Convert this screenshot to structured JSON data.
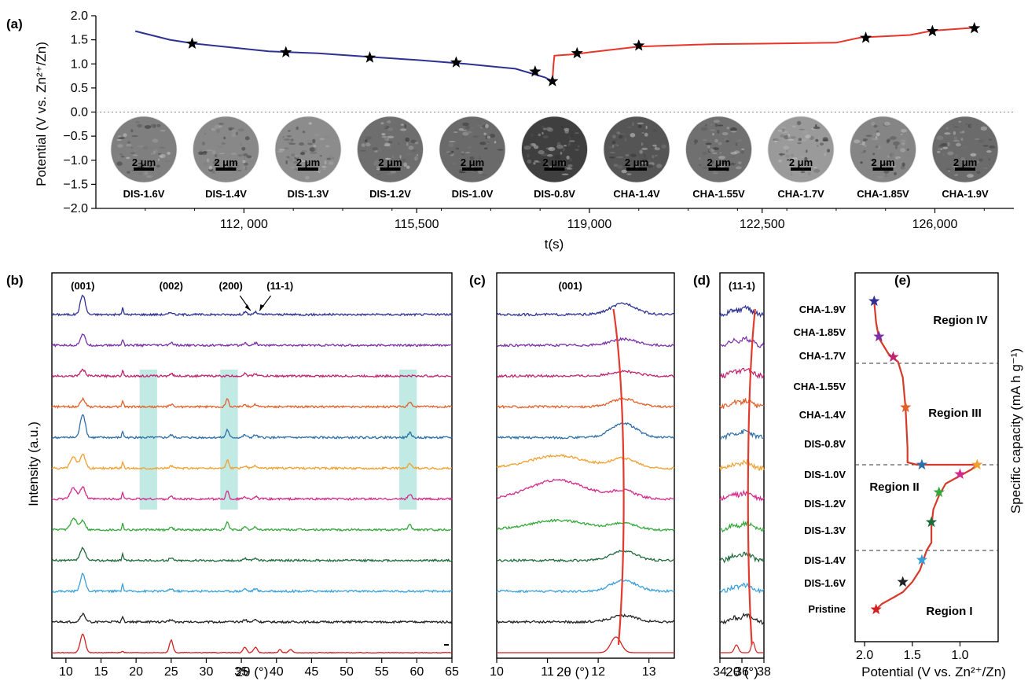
{
  "chart_data": [
    {
      "panel": "(a)",
      "type": "line",
      "xlabel": "t(s)",
      "ylabel": "Potential (V vs. Zn²⁺/Zn)",
      "xlim": [
        109000,
        127600
      ],
      "ylim": [
        -2.0,
        2.0
      ],
      "xticks": [
        112000,
        115500,
        119000,
        122500,
        126000
      ],
      "xtick_labels": [
        "112, 000",
        "115,500",
        "119,000",
        "122,500",
        "126,000"
      ],
      "yticks": [
        2.0,
        1.5,
        1.0,
        0.5,
        0.0,
        -0.5,
        -1.0,
        -1.5,
        -2.0
      ],
      "ytick_labels": [
        "2.0",
        "1.5",
        "1.0",
        "0.5",
        "0.0",
        "−0.5",
        "−1.0",
        "−1.5",
        "−2.0"
      ],
      "zero_line": true,
      "series": [
        {
          "color": "#2e3192",
          "x": [
            109800,
            110500,
            111000,
            112500,
            113500,
            114500,
            115500,
            116500,
            117500,
            118100,
            118250
          ],
          "y": [
            1.68,
            1.5,
            1.42,
            1.26,
            1.22,
            1.15,
            1.08,
            1.0,
            0.9,
            0.72,
            0.64
          ]
        },
        {
          "color": "#e8352a",
          "x": [
            118250,
            118270,
            118290,
            118400,
            118700,
            119000,
            120000,
            121500,
            122500,
            124000,
            124500,
            125500,
            125950,
            126800
          ],
          "y": [
            0.64,
            0.95,
            1.17,
            1.18,
            1.2,
            1.24,
            1.36,
            1.41,
            1.42,
            1.44,
            1.55,
            1.6,
            1.69,
            1.75
          ]
        }
      ],
      "star_points": {
        "x": [
          110950,
          112850,
          114550,
          116300,
          117900,
          118250,
          118750,
          120000,
          124600,
          125950,
          126800
        ],
        "y": [
          1.42,
          1.24,
          1.13,
          1.03,
          0.84,
          0.64,
          1.22,
          1.38,
          1.54,
          1.68,
          1.74
        ]
      },
      "sem_images": {
        "labels": [
          "DIS-1.6V",
          "DIS-1.4V",
          "DIS-1.3V",
          "DIS-1.2V",
          "DIS-1.0V",
          "DIS-0.8V",
          "CHA-1.4V",
          "CHA-1.55V",
          "CHA-1.7V",
          "CHA-1.85V",
          "CHA-1.9V"
        ],
        "scale_bar": "2 μm",
        "shades": [
          "#7f7f7f",
          "#888888",
          "#8c8c8c",
          "#6e6e6e",
          "#6a6a6a",
          "#3f3f3f",
          "#555555",
          "#707070",
          "#9a9a9a",
          "#858585",
          "#6b6b6b"
        ]
      }
    },
    {
      "panel": "(b)",
      "type": "line",
      "xlabel": "2θ (°)",
      "ylabel": "Intensity (a.u.)",
      "xlim": [
        8,
        65
      ],
      "xticks": [
        10,
        15,
        20,
        25,
        30,
        35,
        40,
        45,
        50,
        55,
        60,
        65
      ],
      "peak_labels": [
        "(001)",
        "(002)",
        "(200)",
        "(11-1)"
      ],
      "series_colors": [
        "#2e3192",
        "#7b2fa8",
        "#c0246f",
        "#e0602a",
        "#2e6fa8",
        "#f0a030",
        "#d42a8a",
        "#34a83a",
        "#1e6b3a",
        "#3aa0d8",
        "#222222",
        "#d42020"
      ],
      "highlight_bands": [
        [
          20.5,
          23
        ],
        [
          32,
          34.5
        ],
        [
          57.5,
          60
        ]
      ]
    },
    {
      "panel": "(c)",
      "type": "line",
      "xlabel": "2θ (°)",
      "xlim": [
        10,
        13.5
      ],
      "xticks": [
        10,
        11,
        12,
        13
      ],
      "peak_label": "(001)"
    },
    {
      "panel": "(d)",
      "type": "line",
      "xlabel": "2θ (°)",
      "xlim": [
        34,
        38
      ],
      "xticks": [
        34,
        36,
        38
      ],
      "peak_label": "(11-1)"
    },
    {
      "panel": "(e)",
      "type": "line",
      "xlabel": "Potential (V vs. Zn²⁺/Zn)",
      "ylabel": "Specific capacity (mA h g⁻¹)",
      "xlim": [
        2.1,
        0.6
      ],
      "xticks": [
        2.0,
        1.5,
        1.0
      ],
      "xtick_labels": [
        "2.0",
        "1.5",
        "1.0"
      ],
      "states": [
        "CHA-1.9V",
        "CHA-1.85V",
        "CHA-1.7V",
        "CHA-1.55V",
        "CHA-1.4V",
        "DIS-0.8V",
        "DIS-1.0V",
        "DIS-1.2V",
        "DIS-1.3V",
        "DIS-1.4V",
        "DIS-1.6V",
        "Pristine"
      ],
      "regions": [
        "Region IV",
        "Region III",
        "Region II",
        "Region I"
      ],
      "markers": [
        {
          "state": "CHA-1.9V",
          "potential": 1.9,
          "color": "#2e3192"
        },
        {
          "state": "CHA-1.85V",
          "potential": 1.85,
          "color": "#7b2fa8"
        },
        {
          "state": "CHA-1.7V",
          "potential": 1.7,
          "color": "#c0246f"
        },
        {
          "state": "CHA-1.55V",
          "potential": 1.55,
          "color": "#e0602a"
        },
        {
          "state": "CHA-1.4V",
          "potential": 1.4,
          "color": "#2e6fa8"
        },
        {
          "state": "DIS-0.8V",
          "potential": 0.8,
          "color": "#f0a030"
        },
        {
          "state": "DIS-1.0V",
          "potential": 1.0,
          "color": "#d42a8a"
        },
        {
          "state": "DIS-1.2V",
          "potential": 1.2,
          "color": "#34a83a"
        },
        {
          "state": "DIS-1.3V",
          "potential": 1.3,
          "color": "#1e6b3a"
        },
        {
          "state": "DIS-1.4V",
          "potential": 1.4,
          "color": "#3aa0d8"
        },
        {
          "state": "DIS-1.6V",
          "potential": 1.6,
          "color": "#222222"
        },
        {
          "state": "Pristine",
          "potential": 1.9,
          "color": "#d42020"
        }
      ]
    }
  ]
}
